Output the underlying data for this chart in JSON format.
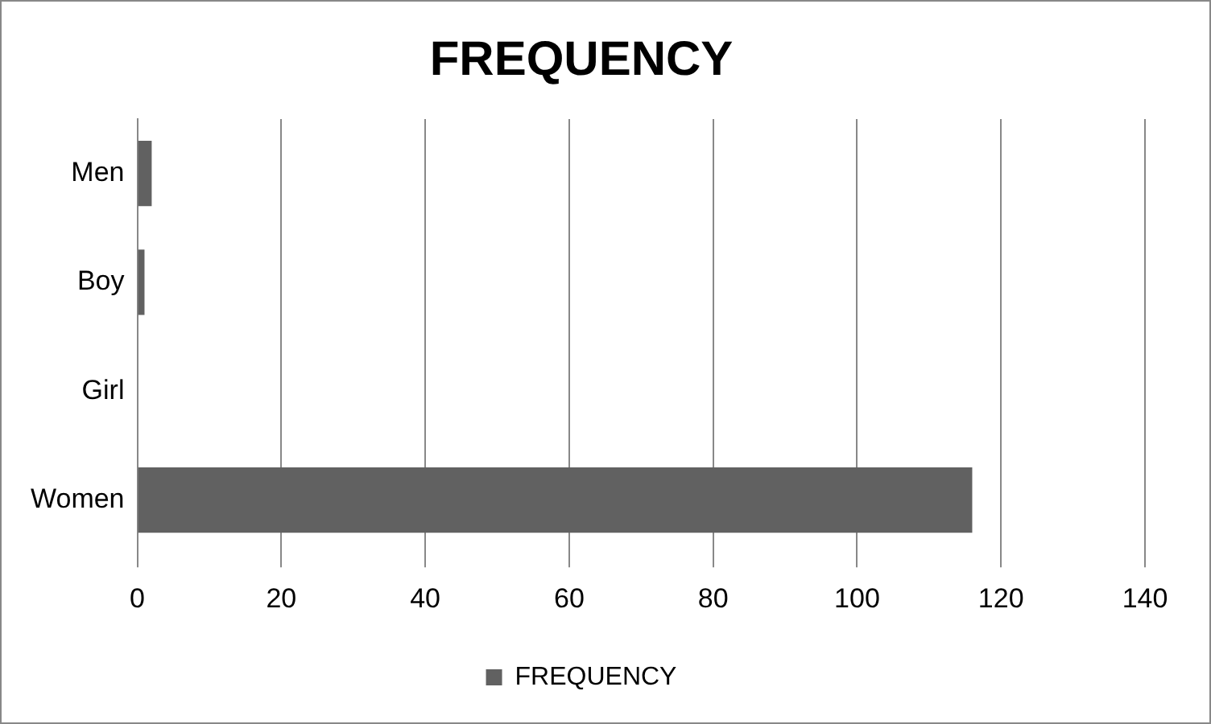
{
  "chart_data": {
    "type": "bar",
    "orientation": "horizontal",
    "title": "FREQUENCY",
    "categories": [
      "Men",
      "Boy",
      "Girl",
      "Women"
    ],
    "series": [
      {
        "name": "FREQUENCY",
        "color": "#616161",
        "values": [
          2,
          1,
          0,
          116
        ]
      }
    ],
    "xlim": [
      0,
      140
    ],
    "xticks": [
      0,
      20,
      40,
      60,
      80,
      100,
      120,
      140
    ],
    "grid": "x",
    "legend": "bottom"
  }
}
